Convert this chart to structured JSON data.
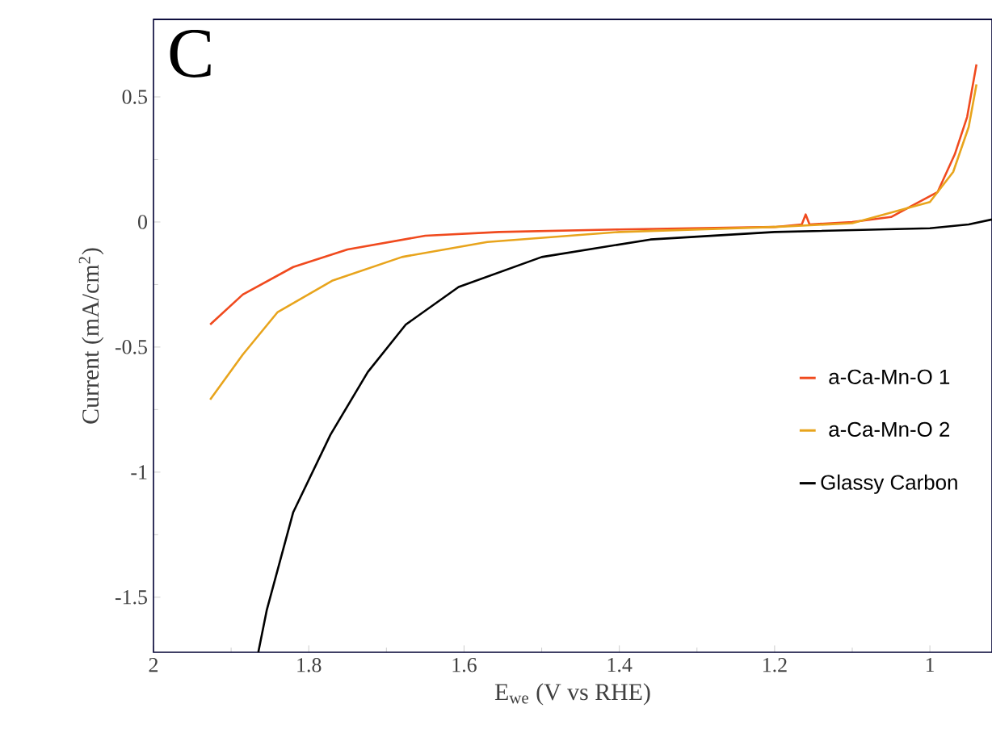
{
  "chart_data": {
    "type": "line",
    "xlabel": "E$_{we}$  (V vs RHE)",
    "ylabel": "Current (mA/cm$^{2}$)",
    "annotations": [
      "C"
    ],
    "xlim": [
      2,
      0.92
    ],
    "ylim": [
      -1.72,
      0.81
    ],
    "xticks": [
      2,
      1.8,
      1.6,
      1.4,
      1.2,
      1
    ],
    "yticks": [
      -1.5,
      -1,
      -0.5,
      0,
      0.5
    ],
    "grid": false,
    "legend": "right",
    "line_style": "solid",
    "marker": "none",
    "series": [
      {
        "name": "a-Ca-Mn-O 1",
        "color": "#f04a1e",
        "x": [
          1.927,
          1.885,
          1.82,
          1.75,
          1.65,
          1.555,
          1.4,
          1.2,
          1.165,
          1.16,
          1.155,
          1.1,
          1.05,
          0.99,
          0.968,
          0.952,
          0.94
        ],
        "values": [
          -0.41,
          -0.29,
          -0.18,
          -0.11,
          -0.055,
          -0.04,
          -0.03,
          -0.02,
          -0.01,
          0.03,
          -0.01,
          0.0,
          0.02,
          0.12,
          0.27,
          0.42,
          0.63
        ]
      },
      {
        "name": "a-Ca-Mn-O 2",
        "color": "#e8a41c",
        "x": [
          1.927,
          1.885,
          1.84,
          1.77,
          1.68,
          1.57,
          1.4,
          1.2,
          1.1,
          1.0,
          0.97,
          0.95,
          0.94
        ],
        "values": [
          -0.71,
          -0.53,
          -0.36,
          -0.235,
          -0.14,
          -0.08,
          -0.04,
          -0.02,
          -0.005,
          0.08,
          0.2,
          0.38,
          0.55
        ]
      },
      {
        "name": "Glassy Carbon",
        "color": "#000000",
        "x": [
          1.865,
          1.854,
          1.82,
          1.772,
          1.724,
          1.675,
          1.607,
          1.5,
          1.36,
          1.2,
          1.0,
          0.95,
          0.92
        ],
        "values": [
          -1.72,
          -1.55,
          -1.16,
          -0.85,
          -0.6,
          -0.41,
          -0.26,
          -0.14,
          -0.07,
          -0.04,
          -0.025,
          -0.01,
          0.01
        ]
      }
    ]
  }
}
